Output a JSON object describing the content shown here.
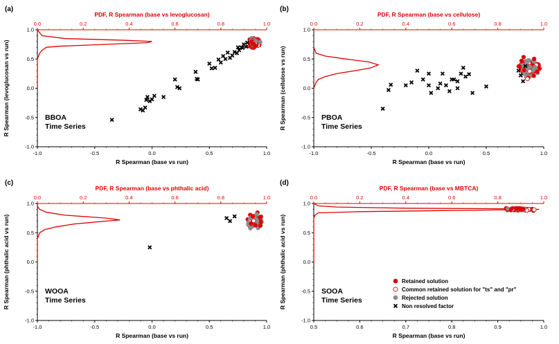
{
  "colors": {
    "axis": "#000000",
    "pdf": "#e00000",
    "retained": "#e00000",
    "common_retained_edge": "#e00000",
    "rejected": "#8c8c8c",
    "non_resolved": "#000000"
  },
  "legend": {
    "placement": "lower-right of panel (d)",
    "items": [
      {
        "label": "Retained solution",
        "marker": "filled-red-circle"
      },
      {
        "label": "Common retained solution for \"ts\" and \"pr\"",
        "marker": "open-red-circle"
      },
      {
        "label": "Rejected solution",
        "marker": "filled-grey-circle"
      },
      {
        "label": "Non resolved factor",
        "marker": "black-cross"
      }
    ]
  },
  "chart_data": [
    {
      "type": "scatter",
      "panel": "(a)",
      "annotation": [
        "BBOA",
        "Time Series"
      ],
      "xlabel": "R Spearman (base vs run)",
      "ylabel": "R Spearman (levoglucosan vs run)",
      "top_xlabel": "PDF, R Spearman (base vs levoglucosan)",
      "xlim": [
        -1.0,
        1.0
      ],
      "ylim": [
        -1.0,
        1.0
      ],
      "x_ticks": [
        "-1.0",
        "-0.5",
        "0.0",
        "0.5",
        "1.0"
      ],
      "y_ticks": [
        "-1.0",
        "-0.5",
        "0.0",
        "0.5",
        "1.0"
      ],
      "top_xlim": [
        0,
        1.0
      ],
      "top_ticks": [
        "0.0",
        "0.2",
        "0.4",
        "0.6",
        "0.8",
        "1.0"
      ],
      "grid": false,
      "non_resolved": [
        [
          -0.35,
          -0.54
        ],
        [
          -0.1,
          -0.36
        ],
        [
          -0.08,
          -0.38
        ],
        [
          -0.06,
          -0.33
        ],
        [
          -0.05,
          -0.2
        ],
        [
          -0.04,
          -0.15
        ],
        [
          -0.02,
          -0.22
        ],
        [
          0.0,
          -0.19
        ],
        [
          0.02,
          -0.13
        ],
        [
          0.1,
          -0.15
        ],
        [
          0.2,
          0.15
        ],
        [
          0.22,
          0.02
        ],
        [
          0.24,
          0.0
        ],
        [
          0.38,
          0.28
        ],
        [
          0.39,
          0.16
        ],
        [
          0.4,
          0.15
        ],
        [
          0.5,
          0.42
        ],
        [
          0.52,
          0.34
        ],
        [
          0.55,
          0.35
        ],
        [
          0.58,
          0.49
        ],
        [
          0.6,
          0.44
        ],
        [
          0.62,
          0.55
        ],
        [
          0.64,
          0.5
        ],
        [
          0.66,
          0.61
        ],
        [
          0.68,
          0.52
        ],
        [
          0.7,
          0.56
        ],
        [
          0.72,
          0.62
        ],
        [
          0.74,
          0.6
        ],
        [
          0.75,
          0.7
        ],
        [
          0.76,
          0.65
        ],
        [
          0.78,
          0.7
        ],
        [
          0.79,
          0.69
        ],
        [
          0.8,
          0.75
        ],
        [
          0.82,
          0.71
        ],
        [
          0.83,
          0.78
        ]
      ],
      "cluster": {
        "x": [
          0.8,
          0.99
        ],
        "y": [
          0.58,
          0.88
        ],
        "center": [
          0.89,
          0.77
        ]
      },
      "pdf": {
        "y": [
          0.0,
          0.5,
          0.6,
          0.65,
          0.7,
          0.72,
          0.75,
          0.78,
          0.8,
          0.82,
          0.85,
          0.9,
          1.0
        ],
        "density": [
          0.0,
          0.0,
          0.01,
          0.02,
          0.04,
          0.1,
          0.3,
          0.48,
          0.5,
          0.38,
          0.12,
          0.02,
          0.0
        ]
      }
    },
    {
      "type": "scatter",
      "panel": "(b)",
      "annotation": [
        "PBOA",
        "Time Series"
      ],
      "xlabel": "R Spearman (base vs run)",
      "ylabel": "R Spearman (cellulose vs run)",
      "top_xlabel": "PDF, R Spearman (base vs cellulose)",
      "xlim": [
        -1.0,
        1.0
      ],
      "ylim": [
        -1.0,
        1.0
      ],
      "x_ticks": [
        "-1.0",
        "-0.5",
        "0.0",
        "0.5",
        "1.0"
      ],
      "y_ticks": [
        "-1.0",
        "-0.5",
        "0.0",
        "0.5",
        "1.0"
      ],
      "top_xlim": [
        0,
        1.0
      ],
      "top_ticks": [
        "0.0",
        "0.2",
        "0.4",
        "0.6",
        "0.8",
        "1.0"
      ],
      "grid": false,
      "non_resolved": [
        [
          -0.4,
          -0.35
        ],
        [
          -0.35,
          -0.03
        ],
        [
          -0.33,
          0.06
        ],
        [
          -0.2,
          0.05
        ],
        [
          -0.15,
          0.1
        ],
        [
          -0.1,
          0.3
        ],
        [
          -0.05,
          0.15
        ],
        [
          0.0,
          0.25
        ],
        [
          0.0,
          0.05
        ],
        [
          0.02,
          -0.08
        ],
        [
          0.08,
          0.0
        ],
        [
          0.1,
          0.08
        ],
        [
          0.12,
          0.25
        ],
        [
          0.15,
          0.05
        ],
        [
          0.18,
          -0.05
        ],
        [
          0.2,
          0.15
        ],
        [
          0.22,
          0.15
        ],
        [
          0.25,
          0.12
        ],
        [
          0.25,
          0.0
        ],
        [
          0.28,
          0.25
        ],
        [
          0.3,
          0.35
        ],
        [
          0.32,
          0.2
        ],
        [
          0.35,
          0.24
        ],
        [
          0.38,
          -0.08
        ],
        [
          0.5,
          0.03
        ],
        [
          0.78,
          0.3
        ],
        [
          0.8,
          0.22
        ],
        [
          0.82,
          0.12
        ],
        [
          0.84,
          0.38
        ]
      ],
      "cluster": {
        "x": [
          0.68,
          1.0
        ],
        "y": [
          0.05,
          0.62
        ],
        "center": [
          0.88,
          0.35
        ]
      },
      "pdf": {
        "y": [
          0.0,
          0.1,
          0.15,
          0.2,
          0.25,
          0.3,
          0.35,
          0.4,
          0.45,
          0.5,
          0.55,
          0.6,
          0.7
        ],
        "density": [
          0.0,
          0.01,
          0.02,
          0.05,
          0.1,
          0.18,
          0.25,
          0.28,
          0.24,
          0.14,
          0.05,
          0.01,
          0.0
        ]
      }
    },
    {
      "type": "scatter",
      "panel": "(c)",
      "annotation": [
        "WOOA",
        "Time Series"
      ],
      "xlabel": "R Spearman (base vs run)",
      "ylabel": "R Spearman (phthalic acid vs run)",
      "top_xlabel": "PDF, R Spearman (base vs phthalic acid)",
      "xlim": [
        -1.0,
        1.0
      ],
      "ylim": [
        -1.0,
        1.0
      ],
      "x_ticks": [
        "-1.0",
        "-0.5",
        "0.0",
        "0.5",
        "1.0"
      ],
      "y_ticks": [
        "-1.0",
        "-0.5",
        "0.0",
        "0.5",
        "1.0"
      ],
      "top_xlim": [
        0,
        1.0
      ],
      "top_ticks": [
        "0.0",
        "0.2",
        "0.4",
        "0.6",
        "0.8",
        "1.0"
      ],
      "grid": false,
      "non_resolved": [
        [
          -0.02,
          0.25
        ],
        [
          0.65,
          0.75
        ],
        [
          0.68,
          0.7
        ],
        [
          0.72,
          0.78
        ]
      ],
      "cluster": {
        "x": [
          0.78,
          1.0
        ],
        "y": [
          0.45,
          0.92
        ],
        "center": [
          0.9,
          0.7
        ]
      },
      "pdf": {
        "y": [
          0.0,
          0.4,
          0.5,
          0.55,
          0.6,
          0.65,
          0.7,
          0.72,
          0.75,
          0.8,
          0.85,
          0.9,
          0.95
        ],
        "density": [
          0.0,
          0.0,
          0.01,
          0.03,
          0.08,
          0.16,
          0.3,
          0.36,
          0.3,
          0.12,
          0.04,
          0.01,
          0.0
        ]
      }
    },
    {
      "type": "scatter",
      "panel": "(d)",
      "annotation": [
        "SOOA",
        "Time Series"
      ],
      "xlabel": "R Spearman (base vs run)",
      "ylabel": "R Spearman (phthalic acid vs run)",
      "top_xlabel": "PDF, R Spearman (base vs MBTCA)",
      "xlim": [
        0.5,
        1.0
      ],
      "ylim": [
        -1.0,
        1.0
      ],
      "x_ticks": [
        "0.5",
        "0.6",
        "0.7",
        "0.8",
        "0.9",
        "1.0"
      ],
      "y_ticks": [
        "-1.0",
        "-0.5",
        "0.0",
        "0.5",
        "1.0"
      ],
      "top_xlim": [
        0,
        1.0
      ],
      "top_ticks": [
        "0.0",
        "0.2",
        "0.4",
        "0.6",
        "0.8",
        "1.0"
      ],
      "grid": false,
      "non_resolved": [],
      "cluster": {
        "x": [
          0.88,
          1.0
        ],
        "y": [
          0.86,
          0.95
        ],
        "center": [
          0.95,
          0.9
        ]
      },
      "pdf": {
        "y": [
          0.0,
          0.75,
          0.8,
          0.84,
          0.86,
          0.88,
          0.9,
          0.91,
          0.92,
          0.94,
          0.96,
          1.0
        ],
        "density": [
          0.0,
          0.0,
          0.005,
          0.02,
          0.2,
          0.6,
          0.98,
          0.85,
          0.4,
          0.1,
          0.02,
          0.0
        ]
      }
    }
  ]
}
